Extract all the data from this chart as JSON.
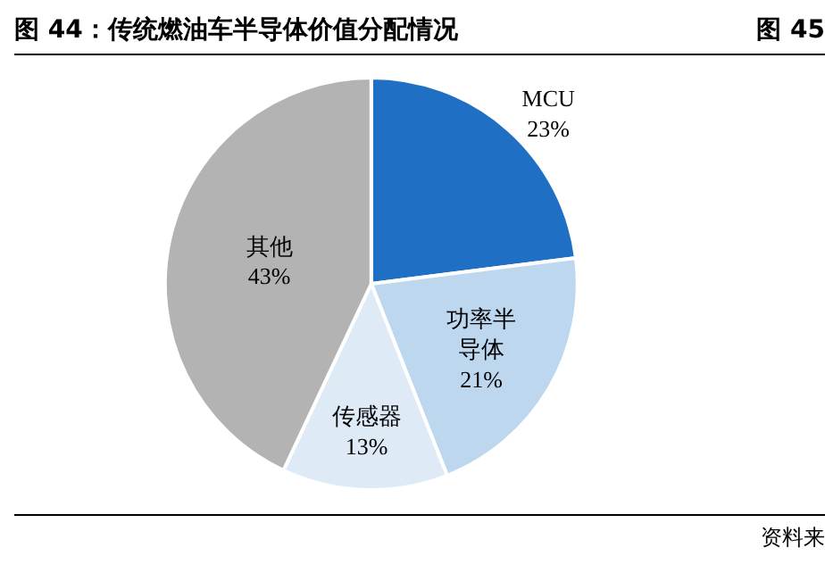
{
  "chart_data": {
    "type": "pie",
    "title": "图 44：传统燃油车半导体价值分配情况",
    "categories": [
      "MCU",
      "功率半导体",
      "传感器",
      "其他"
    ],
    "values": [
      23,
      21,
      13,
      43
    ],
    "value_labels": [
      "23%",
      "21%",
      "13%",
      "43%"
    ],
    "colors": [
      "#1f6fc5",
      "#bdd7ee",
      "#deebf7",
      "#b3b3b3"
    ],
    "legend": false,
    "annotations": [
      "图 45",
      "资料来"
    ]
  }
}
